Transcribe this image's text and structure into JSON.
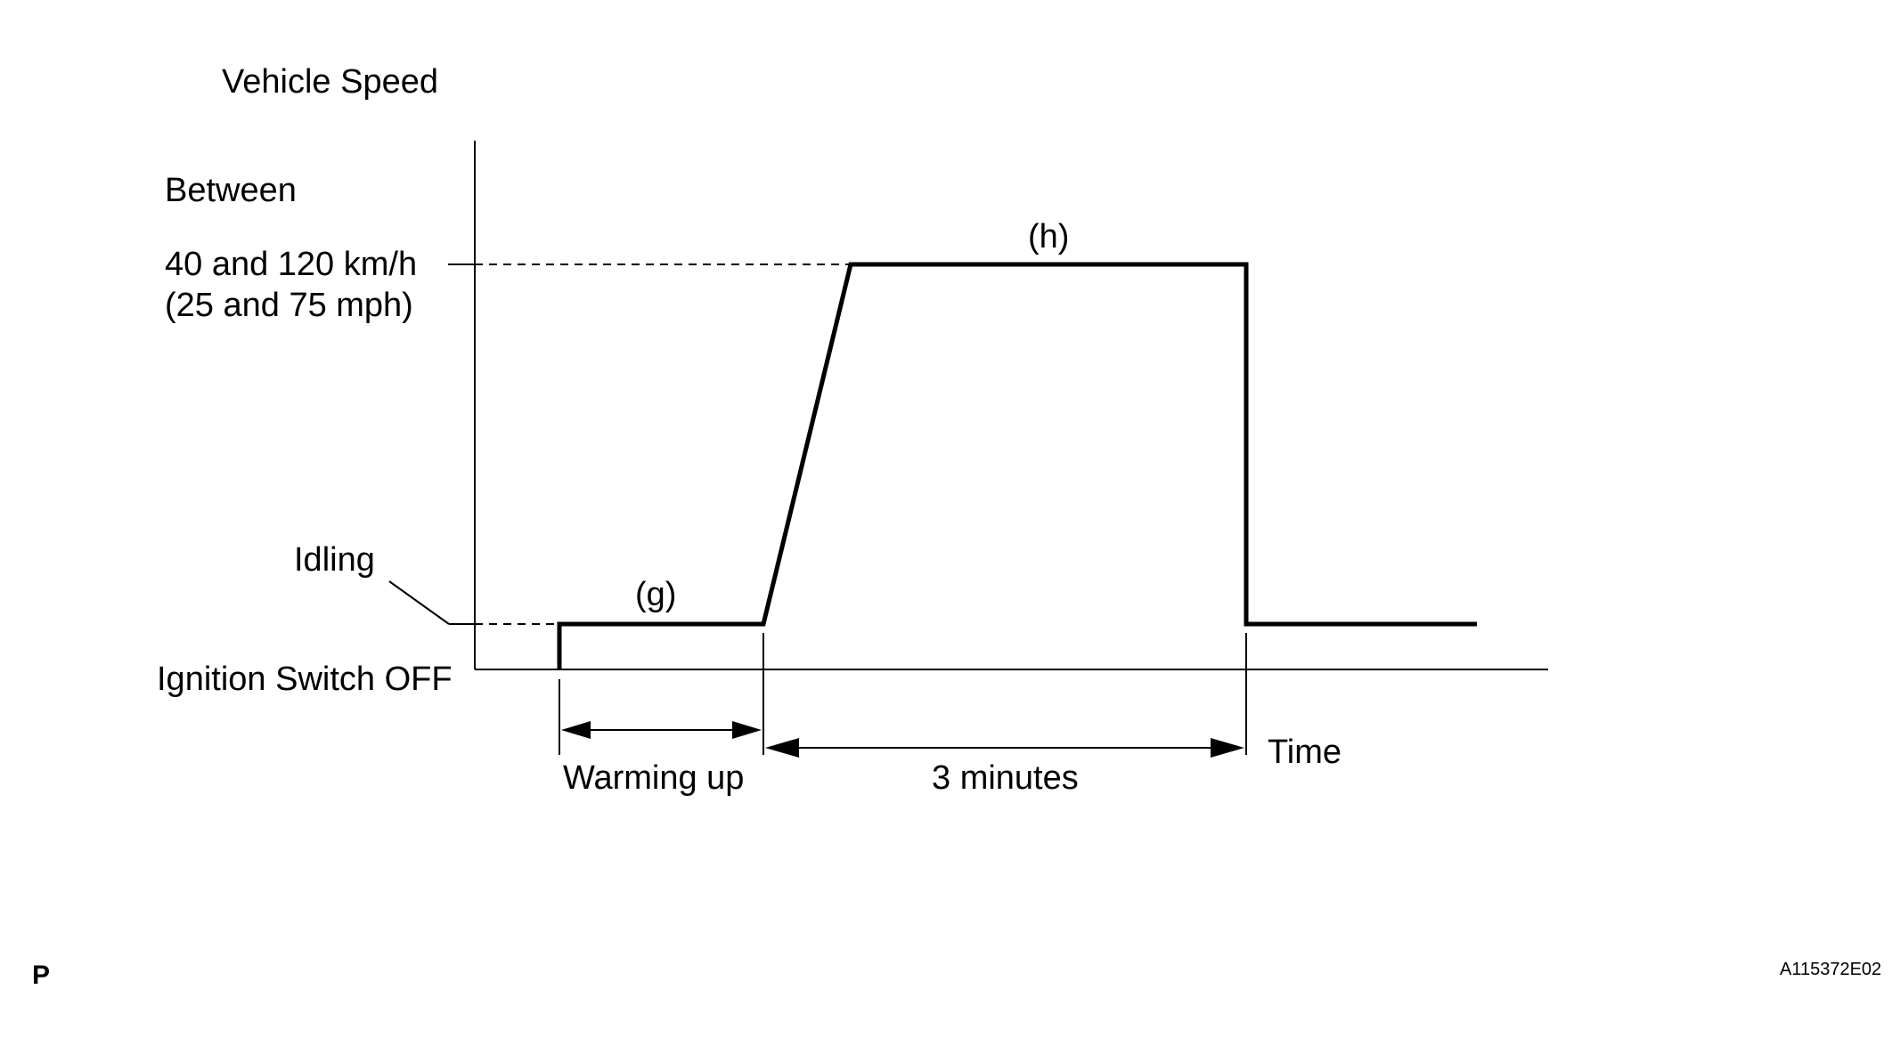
{
  "labels": {
    "vehicle_speed": "Vehicle Speed",
    "between": "Between",
    "speed_range_kmh": "40 and 120 km/h",
    "speed_range_mph": "(25 and 75 mph)",
    "idling": "Idling",
    "ignition_off": "Ignition Switch OFF",
    "step_g": "(g)",
    "step_h": "(h)",
    "warming_up": "Warming up",
    "three_minutes": "3 minutes",
    "time": "Time",
    "corner_mark": "P",
    "figure_id": "A115372E02"
  },
  "colors": {
    "line": "#000000",
    "background": "#ffffff"
  }
}
